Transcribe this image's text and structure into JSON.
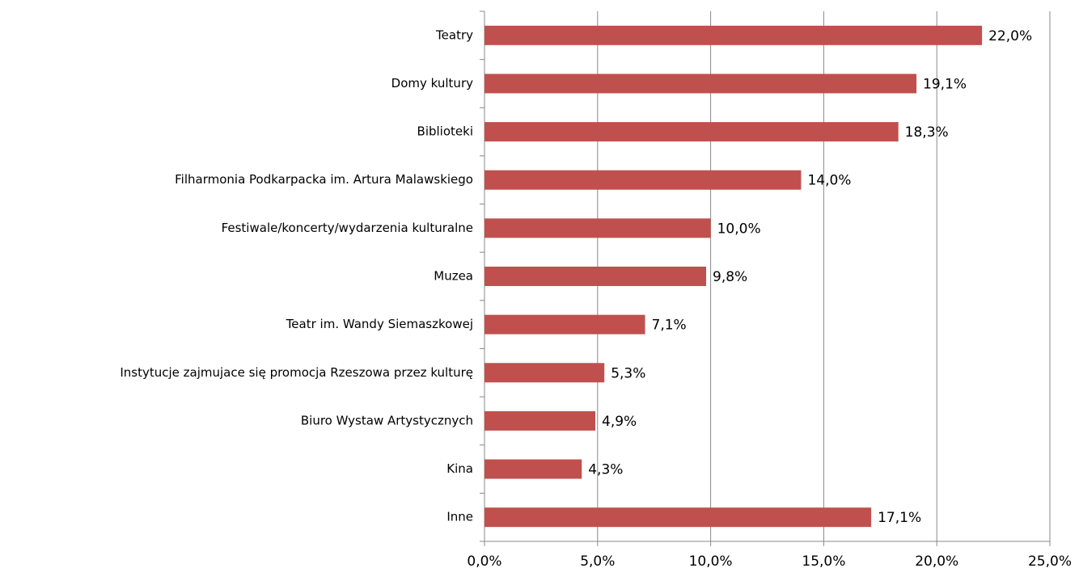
{
  "chart_data": {
    "type": "hbar",
    "categories": [
      "Teatry",
      "Domy kultury",
      "Biblioteki",
      "Filharmonia Podkarpacka im. Artura Malawskiego",
      "Festiwale/koncerty/wydarzenia kulturalne",
      "Muzea",
      "Teatr im. Wandy Siemaszkowej",
      "Instytucje zajmujace się promocja Rzeszowa przez kulturę",
      "Biuro Wystaw Artystycznych",
      "Kina",
      "Inne"
    ],
    "values": [
      22.0,
      19.1,
      18.3,
      14.0,
      10.0,
      9.8,
      7.1,
      5.3,
      4.9,
      4.3,
      17.1
    ],
    "value_labels": [
      "22,0%",
      "19,1%",
      "18,3%",
      "14,0%",
      "10,0%",
      "9,8%",
      "7,1%",
      "5,3%",
      "4,9%",
      "4,3%",
      "17,1%"
    ],
    "color": "#c0504d",
    "xlim": [
      0,
      25
    ],
    "xticks": [
      {
        "value": 0,
        "label": "0,0%"
      },
      {
        "value": 5,
        "label": "5,0%"
      },
      {
        "value": 10,
        "label": "10,0%"
      },
      {
        "value": 15,
        "label": "15,0%"
      },
      {
        "value": 20,
        "label": "20,0%"
      },
      {
        "value": 25,
        "label": "25,0%"
      }
    ],
    "grid": true
  }
}
